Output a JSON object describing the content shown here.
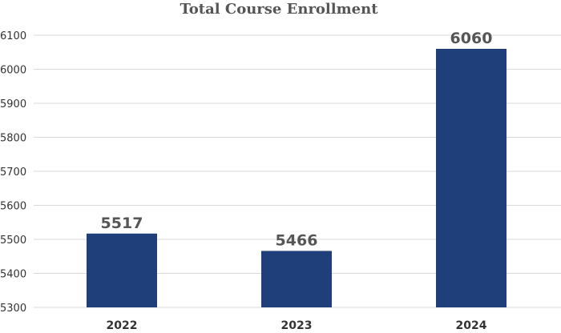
{
  "chart_data": {
    "type": "bar",
    "title": "Total Course Enrollment",
    "xlabel": "",
    "ylabel": "",
    "categories": [
      "2022",
      "2023",
      "2024"
    ],
    "values": [
      5517,
      5466,
      6060
    ],
    "ylim": [
      5300,
      6100
    ],
    "yticks": [
      5300,
      5400,
      5500,
      5600,
      5700,
      5800,
      5900,
      6000,
      6100
    ],
    "grid": true,
    "data_labels": true,
    "bar_color": "#1f3f7a"
  }
}
